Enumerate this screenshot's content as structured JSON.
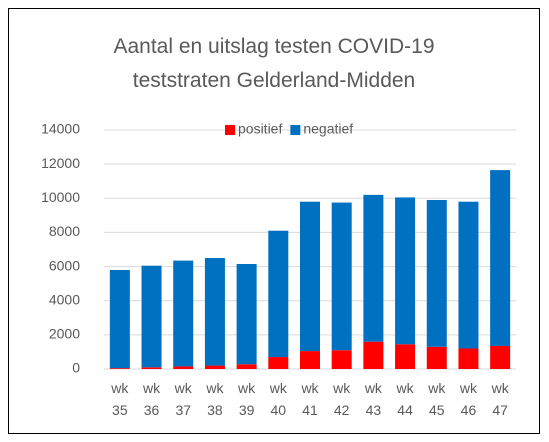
{
  "chart_data": {
    "type": "stacked_bar",
    "title": "Aantal en uitslag testen COVID-19 teststraten Gelderland-Midden",
    "categories": [
      "wk 35",
      "wk 36",
      "wk 37",
      "wk 38",
      "wk 39",
      "wk 40",
      "wk 41",
      "wk 42",
      "wk 43",
      "wk 44",
      "wk 45",
      "wk 46",
      "wk 47"
    ],
    "series": [
      {
        "name": "positief",
        "color": "#ff0000",
        "values": [
          50,
          100,
          150,
          200,
          280,
          700,
          1050,
          1100,
          1600,
          1450,
          1300,
          1200,
          1350
        ]
      },
      {
        "name": "negatief",
        "color": "#0070c0",
        "values": [
          5750,
          5950,
          6200,
          6300,
          5870,
          7400,
          8750,
          8650,
          8600,
          8600,
          8600,
          8600,
          10300
        ]
      }
    ],
    "ylim": [
      0,
      14000
    ],
    "yticks": [
      0,
      2000,
      4000,
      6000,
      8000,
      10000,
      12000,
      14000
    ],
    "grid": true,
    "legend": "top"
  }
}
